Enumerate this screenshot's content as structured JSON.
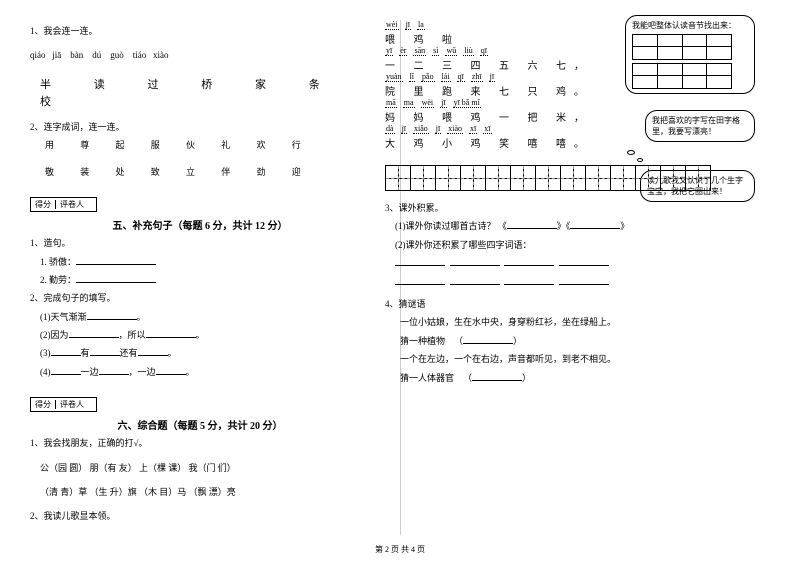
{
  "left": {
    "q1": "1、我会连一连。",
    "pinyin1": [
      "qiáo",
      "jiā",
      "bàn",
      "dú",
      "guò",
      "tiáo",
      "xiào"
    ],
    "chars1": "半 读 过 桥 家 条 校",
    "q2": "2、连字成词，连一连。",
    "row2a": "用  尊  起  服  伙  礼  欢  行",
    "row2b": "敬  装  处  致  立  伴  劲  迎",
    "score_label1": "得分",
    "score_label2": "评卷人",
    "section5": "五、补充句子（每题 6 分，共计 12 分）",
    "s5_1": "1、造句。",
    "s5_1a": "1. 骄傲：",
    "s5_1b": "2. 勤劳：",
    "s5_2": "2、完成句子的填写。",
    "s5_2a": "(1)天气渐渐",
    "s5_2b": "(2)因为",
    "s5_2b2": "，所以",
    "s5_2c": "(3)",
    "s5_2c2": "有",
    "s5_2c3": "还有",
    "s5_2d": "(4)",
    "s5_2d2": "一边",
    "s5_2d3": "，一边",
    "section6": "六、综合题（每题 5 分，共计 20 分）",
    "s6_1": "1、我会找朋友，正确的打√。",
    "s6_1a": "公（园  圆）   朋（有  友）   上（棵  课）   我（门  们）",
    "s6_1b": "（清  青）草   （生  升）旗   （木  目）马   （飘  漂）亮",
    "s6_2": "2、我读儿歌显本领。"
  },
  "right": {
    "poem": [
      {
        "p": [
          "wèi",
          "jī",
          "la"
        ],
        "c": "喂   鸡   啦"
      },
      {
        "p": [
          "yī",
          "èr",
          "sān",
          "sì",
          "wǔ",
          "liù",
          "qī"
        ],
        "c": "一 二 三 四 五 六 七，"
      },
      {
        "p": [
          "yuàn",
          "lǐ",
          "pǎo",
          "lái",
          "qī",
          "zhī",
          "jī"
        ],
        "c": "院   里   跑   来   七   只 鸡。"
      },
      {
        "p": [
          "mā",
          "ma",
          "wèi",
          "jī",
          "yī bǎ mǐ"
        ],
        "c": "妈   妈   喂   鸡   一  把 米，"
      },
      {
        "p": [
          "dà",
          "jī",
          "xiǎo",
          "jī",
          "xiào",
          "xī",
          "xī"
        ],
        "c": "大   鸡   小 鸡   笑   嘻  嘻。"
      }
    ],
    "bubble1": "我能吧整体认读音节找出来：",
    "bubble2": "我把喜欢的字写在田字格里，我要写漂亮！",
    "bubble3": "读儿歌我又认识了几个生字宝宝，我把它圈出来！",
    "q3": "3、课外积累。",
    "q3a": "(1)课外你读过哪首古诗？  《",
    "q3a2": "》《",
    "q3a3": "》",
    "q3b": "(2)课外你还积累了哪些四字词语：",
    "q4": "4、猜谜语",
    "q4a": "一位小姑娘，生在水中央，身穿粉红衫，坐在绿船上。",
    "q4b": "猜一种植物",
    "q4c": "一个在左边，一个在右边，声音都听见，到老不相见。",
    "q4d": "猜一人体器官"
  },
  "footer": "第 2 页  共 4 页"
}
